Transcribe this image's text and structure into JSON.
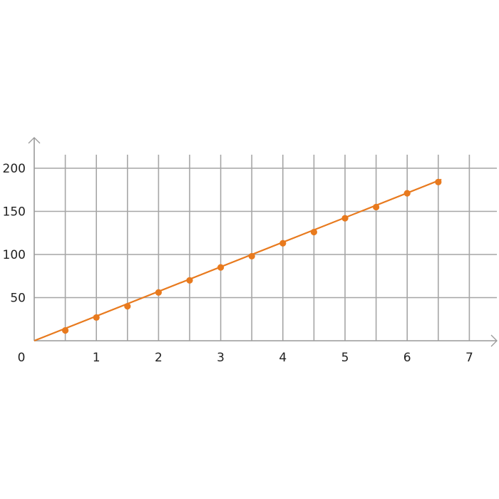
{
  "chart_data": {
    "type": "line",
    "title": "",
    "xlabel": "",
    "ylabel": "",
    "xlim": [
      0,
      7
    ],
    "ylim": [
      0,
      200
    ],
    "grid": true,
    "x_ticks": [
      "0",
      "1",
      "2",
      "3",
      "4",
      "5",
      "6",
      "7"
    ],
    "y_ticks": [
      "50",
      "100",
      "150",
      "200"
    ],
    "x": [
      0.5,
      1,
      1.5,
      2,
      2.5,
      3,
      3.5,
      4,
      4.5,
      5,
      5.5,
      6,
      6.5
    ],
    "values": [
      12,
      27,
      40,
      56,
      70,
      85,
      98,
      113,
      126,
      142,
      155,
      171,
      184
    ],
    "line_start": [
      0,
      0
    ],
    "line_end": [
      6.55,
      187
    ],
    "colors": {
      "series": "#e87a1e",
      "grid": "#a6a6a6",
      "axis": "#999999"
    }
  }
}
